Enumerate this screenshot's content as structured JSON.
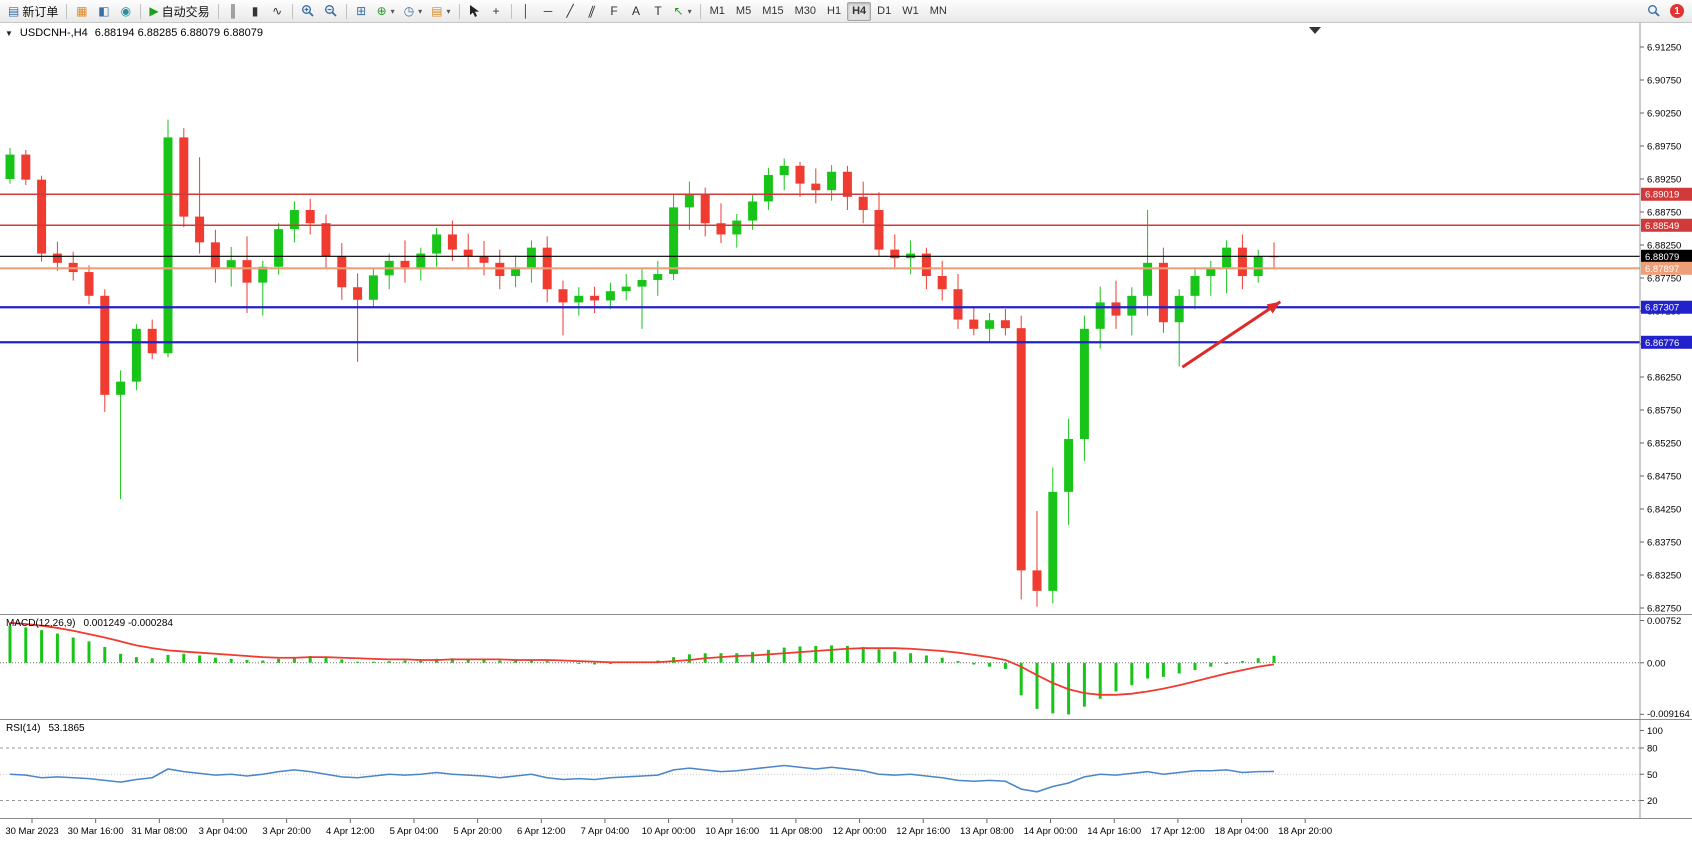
{
  "toolbar": {
    "new_order_label": "新订单",
    "autotrading_label": "自动交易",
    "timeframes": [
      "M1",
      "M5",
      "M15",
      "M30",
      "H1",
      "H4",
      "D1",
      "W1",
      "MN"
    ],
    "active_timeframe": "H4",
    "notification_badge": "1"
  },
  "icons": {
    "collapse": "▼",
    "new_order": "▤",
    "charts": "▦",
    "metaeditor": "◧",
    "community": "◉",
    "play": "▶",
    "bar_chart": "║",
    "candles": "▮",
    "line_chart": "∿",
    "tile": "⊞",
    "indicators": "⊕",
    "periods": "◷",
    "templates": "▤",
    "caret": "▾",
    "crosshair": "+",
    "vline": "│",
    "hline": "─",
    "trendline": "╱",
    "channel": "∥",
    "fibonacci": "F",
    "text": "A",
    "label": "T",
    "arrows": "↖"
  },
  "chart_data": [
    {
      "type": "candlestick",
      "name": "main",
      "title": "USDCNH-,H4",
      "ohlc_display": "6.88194 6.88285 6.88079 6.88079",
      "timeframe": "H4",
      "up_color": "#18c418",
      "down_color": "#ef3b30",
      "y_ticks": [
        "6.91250",
        "6.90750",
        "6.90250",
        "6.89750",
        "6.89250",
        "6.88750",
        "6.88250",
        "6.87750",
        "6.87250",
        "6.86750",
        "6.86250",
        "6.85750",
        "6.85250",
        "6.84750",
        "6.84250",
        "6.83750",
        "6.83250",
        "6.82750"
      ],
      "x_labels": [
        "30 Mar 2023",
        "30 Mar 16:00",
        "31 Mar 08:00",
        "3 Apr 04:00",
        "3 Apr 20:00",
        "4 Apr 12:00",
        "5 Apr 04:00",
        "5 Apr 20:00",
        "6 Apr 12:00",
        "7 Apr 04:00",
        "10 Apr 00:00",
        "10 Apr 16:00",
        "11 Apr 08:00",
        "12 Apr 00:00",
        "12 Apr 16:00",
        "13 Apr 08:00",
        "14 Apr 00:00",
        "14 Apr 16:00",
        "17 Apr 12:00",
        "18 Apr 04:00",
        "18 Apr 20:00"
      ],
      "hlines": [
        {
          "price": 6.89019,
          "label": "6.89019",
          "color": "#d03a3a",
          "width": 1.5
        },
        {
          "price": 6.88549,
          "label": "6.88549",
          "color": "#d03a3a",
          "width": 1.5
        },
        {
          "price": 6.88079,
          "label": "6.88079",
          "color": "#000000",
          "width": 1.1
        },
        {
          "price": 6.87897,
          "label": "6.87897",
          "color": "#ef9f78",
          "width": 2.2
        },
        {
          "price": 6.87307,
          "label": "6.87307",
          "color": "#2222cc",
          "width": 2.2
        },
        {
          "price": 6.86776,
          "label": "6.86776",
          "color": "#2222cc",
          "width": 2.2
        }
      ],
      "arrow": {
        "from_bar": 74.2,
        "from_price": 6.864,
        "to_bar": 80.4,
        "to_price": 6.8739,
        "color": "#e02a2a"
      },
      "candles": [
        [
          6.8925,
          6.8972,
          6.8918,
          6.8962
        ],
        [
          6.8962,
          6.8969,
          6.8916,
          6.8924
        ],
        [
          6.8924,
          6.893,
          6.88,
          6.8812
        ],
        [
          6.8812,
          6.883,
          6.8786,
          6.8798
        ],
        [
          6.8798,
          6.8815,
          6.8771,
          6.8784
        ],
        [
          6.8784,
          6.8794,
          6.8735,
          6.8748
        ],
        [
          6.8748,
          6.8758,
          6.8572,
          6.8598
        ],
        [
          6.8598,
          6.8635,
          6.844,
          6.8618
        ],
        [
          6.8618,
          6.8705,
          6.8605,
          6.8698
        ],
        [
          6.8698,
          6.8712,
          6.8652,
          6.8661
        ],
        [
          6.8661,
          6.9015,
          6.8655,
          6.8988
        ],
        [
          6.8988,
          6.9002,
          6.8852,
          6.8868
        ],
        [
          6.8868,
          6.8958,
          6.8812,
          6.8829
        ],
        [
          6.8829,
          6.8848,
          6.8768,
          6.8791
        ],
        [
          6.8791,
          6.8822,
          6.8762,
          6.8802
        ],
        [
          6.8802,
          6.8838,
          6.8722,
          6.8768
        ],
        [
          6.8768,
          6.8801,
          6.8718,
          6.8792
        ],
        [
          6.8792,
          6.8858,
          6.878,
          6.8849
        ],
        [
          6.8849,
          6.8891,
          6.8829,
          6.8878
        ],
        [
          6.8878,
          6.8895,
          6.8841,
          6.8858
        ],
        [
          6.8858,
          6.8871,
          6.8789,
          6.8808
        ],
        [
          6.8808,
          6.8828,
          6.8742,
          6.8761
        ],
        [
          6.8761,
          6.8782,
          6.8648,
          6.8742
        ],
        [
          6.8742,
          6.8791,
          6.8731,
          6.8779
        ],
        [
          6.8779,
          6.8812,
          6.8758,
          6.8801
        ],
        [
          6.8801,
          6.8832,
          6.8768,
          6.8788
        ],
        [
          6.8788,
          6.8821,
          6.8771,
          6.8812
        ],
        [
          6.8812,
          6.8851,
          6.8792,
          6.8841
        ],
        [
          6.8841,
          6.8862,
          6.8801,
          6.8818
        ],
        [
          6.8818,
          6.8842,
          6.8788,
          6.8808
        ],
        [
          6.8808,
          6.8831,
          6.8779,
          6.8798
        ],
        [
          6.8798,
          6.8818,
          6.8758,
          6.8778
        ],
        [
          6.8778,
          6.8809,
          6.8761,
          6.8791
        ],
        [
          6.8791,
          6.8832,
          6.8768,
          6.8821
        ],
        [
          6.8821,
          6.8838,
          6.8738,
          6.8758
        ],
        [
          6.8758,
          6.8771,
          6.8688,
          6.8738
        ],
        [
          6.8738,
          6.8761,
          6.8718,
          6.8748
        ],
        [
          6.8748,
          6.8762,
          6.8722,
          6.8741
        ],
        [
          6.8741,
          6.8768,
          6.8728,
          6.8755
        ],
        [
          6.8755,
          6.8781,
          6.8741,
          6.8762
        ],
        [
          6.8762,
          6.8791,
          6.8698,
          6.8772
        ],
        [
          6.8772,
          6.8801,
          6.8748,
          6.8781
        ],
        [
          6.8781,
          6.8901,
          6.8772,
          6.8882
        ],
        [
          6.8882,
          6.8921,
          6.8848,
          6.8902
        ],
        [
          6.8902,
          6.8912,
          6.8838,
          6.8858
        ],
        [
          6.8858,
          6.8888,
          6.8828,
          6.8841
        ],
        [
          6.8841,
          6.8872,
          6.8821,
          6.8862
        ],
        [
          6.8862,
          6.8902,
          6.8848,
          6.8891
        ],
        [
          6.8891,
          6.8942,
          6.8878,
          6.8931
        ],
        [
          6.8931,
          6.8956,
          6.8908,
          6.8945
        ],
        [
          6.8945,
          6.8951,
          6.8898,
          6.8918
        ],
        [
          6.8918,
          6.8941,
          6.8888,
          6.8908
        ],
        [
          6.8908,
          6.8946,
          6.8892,
          6.8936
        ],
        [
          6.8936,
          6.8945,
          6.8878,
          6.8898
        ],
        [
          6.8898,
          6.8921,
          6.8858,
          6.8878
        ],
        [
          6.8878,
          6.8905,
          6.8808,
          6.8818
        ],
        [
          6.8818,
          6.8841,
          6.8788,
          6.8805
        ],
        [
          6.8805,
          6.8832,
          6.8781,
          6.8812
        ],
        [
          6.8812,
          6.8821,
          6.8758,
          6.8778
        ],
        [
          6.8778,
          6.8801,
          6.8741,
          6.8758
        ],
        [
          6.8758,
          6.8781,
          6.8698,
          6.8712
        ],
        [
          6.8712,
          6.8731,
          6.8688,
          6.8698
        ],
        [
          6.8698,
          6.8722,
          6.8678,
          6.8711
        ],
        [
          6.8711,
          6.8728,
          6.8688,
          6.8699
        ],
        [
          6.8699,
          6.8718,
          6.8288,
          6.8332
        ],
        [
          6.8332,
          6.8422,
          6.8277,
          6.8301
        ],
        [
          6.8301,
          6.8488,
          6.8282,
          6.8451
        ],
        [
          6.8451,
          6.8562,
          6.8401,
          6.8531
        ],
        [
          6.8531,
          6.8718,
          6.8498,
          6.8698
        ],
        [
          6.8698,
          6.8762,
          6.8668,
          6.8738
        ],
        [
          6.8738,
          6.8771,
          6.8698,
          6.8718
        ],
        [
          6.8718,
          6.8761,
          6.8688,
          6.8748
        ],
        [
          6.8748,
          6.8878,
          6.8718,
          6.8798
        ],
        [
          6.8798,
          6.8821,
          6.8692,
          6.8708
        ],
        [
          6.8708,
          6.8758,
          6.8641,
          6.8748
        ],
        [
          6.8748,
          6.8788,
          6.8728,
          6.8778
        ],
        [
          6.8778,
          6.8801,
          6.8748,
          6.8791
        ],
        [
          6.8791,
          6.8832,
          6.8752,
          6.8821
        ],
        [
          6.8821,
          6.8841,
          6.8758,
          6.8778
        ],
        [
          6.8778,
          6.8818,
          6.8768,
          6.8808
        ],
        [
          6.8808,
          6.8829,
          6.8788,
          6.88079
        ]
      ]
    },
    {
      "type": "bar+line",
      "name": "macd",
      "title": "MACD(12,26,9)",
      "values_display": "0.001249 -0.000284",
      "histogram_color": "#18c418",
      "signal_color": "#ef3b30",
      "y_ticks": [
        "0.00752",
        "0.00",
        "-0.009164"
      ],
      "ylim": [
        -0.01,
        0.0085
      ],
      "histogram": [
        0.0066,
        0.0063,
        0.0058,
        0.0052,
        0.0045,
        0.0038,
        0.0028,
        0.0016,
        0.001,
        0.0008,
        0.0014,
        0.0016,
        0.0013,
        0.0009,
        0.0007,
        0.0005,
        0.0004,
        0.0007,
        0.001,
        0.0012,
        0.001,
        0.0006,
        0.0002,
        0.0002,
        0.0003,
        0.0004,
        0.0005,
        0.0007,
        0.0008,
        0.0007,
        0.0006,
        0.0004,
        0.0004,
        0.0005,
        0.0003,
        0.0,
        -0.0002,
        -0.0003,
        -0.0002,
        0.0,
        0.0002,
        0.0004,
        0.001,
        0.0015,
        0.0017,
        0.0017,
        0.0017,
        0.0019,
        0.0023,
        0.0027,
        0.0029,
        0.003,
        0.0031,
        0.003,
        0.0028,
        0.0024,
        0.002,
        0.0017,
        0.0013,
        0.0009,
        0.0003,
        -0.0003,
        -0.0007,
        -0.0011,
        -0.0058,
        -0.0082,
        -0.009,
        -0.0092,
        -0.0078,
        -0.0064,
        -0.0051,
        -0.004,
        -0.0028,
        -0.0025,
        -0.0019,
        -0.0013,
        -0.0007,
        -0.0002,
        0.0003,
        0.0008,
        0.001249
      ],
      "signal": [
        0.0071,
        0.0069,
        0.0066,
        0.0062,
        0.0057,
        0.0051,
        0.0045,
        0.0038,
        0.0031,
        0.0026,
        0.0022,
        0.002,
        0.0018,
        0.0016,
        0.0014,
        0.0012,
        0.001,
        0.0009,
        0.0009,
        0.001,
        0.001,
        0.0009,
        0.0008,
        0.0007,
        0.0006,
        0.0006,
        0.0005,
        0.0005,
        0.0006,
        0.0006,
        0.0006,
        0.0006,
        0.0005,
        0.0005,
        0.0005,
        0.0004,
        0.0003,
        0.0002,
        0.0001,
        0.0001,
        0.0001,
        0.0001,
        0.0003,
        0.0005,
        0.0008,
        0.001,
        0.0012,
        0.0013,
        0.0015,
        0.0017,
        0.0019,
        0.0021,
        0.0023,
        0.0025,
        0.0026,
        0.0026,
        0.0026,
        0.0025,
        0.0023,
        0.0021,
        0.0018,
        0.0014,
        0.001,
        0.0005,
        -0.0007,
        -0.0022,
        -0.0036,
        -0.0047,
        -0.0054,
        -0.0057,
        -0.0057,
        -0.0055,
        -0.0051,
        -0.0046,
        -0.004,
        -0.0033,
        -0.0026,
        -0.0019,
        -0.0013,
        -0.0007,
        -0.000284
      ]
    },
    {
      "type": "line",
      "name": "rsi",
      "title": "RSI(14)",
      "value_display": "53.1865",
      "line_color": "#4a86c8",
      "levels": [
        80,
        20
      ],
      "y_tick_labels": [
        "100",
        "80",
        "50",
        "20"
      ],
      "y_tick_values": [
        100,
        80,
        50,
        20
      ],
      "ylim": [
        0,
        112
      ],
      "values": [
        50,
        49,
        46,
        47,
        46,
        45,
        43,
        41,
        44,
        46,
        56,
        53,
        51,
        49,
        50,
        48,
        50,
        53,
        55,
        53,
        50,
        47,
        46,
        48,
        50,
        49,
        50,
        52,
        50,
        49,
        48,
        46,
        48,
        50,
        46,
        44,
        45,
        44,
        46,
        47,
        48,
        49,
        55,
        57,
        55,
        53,
        54,
        56,
        58,
        60,
        58,
        56,
        58,
        56,
        54,
        50,
        49,
        50,
        48,
        46,
        43,
        42,
        43,
        42,
        33,
        30,
        36,
        40,
        47,
        50,
        49,
        51,
        53,
        50,
        52,
        54,
        54,
        55,
        52,
        53,
        53.1865
      ]
    }
  ]
}
